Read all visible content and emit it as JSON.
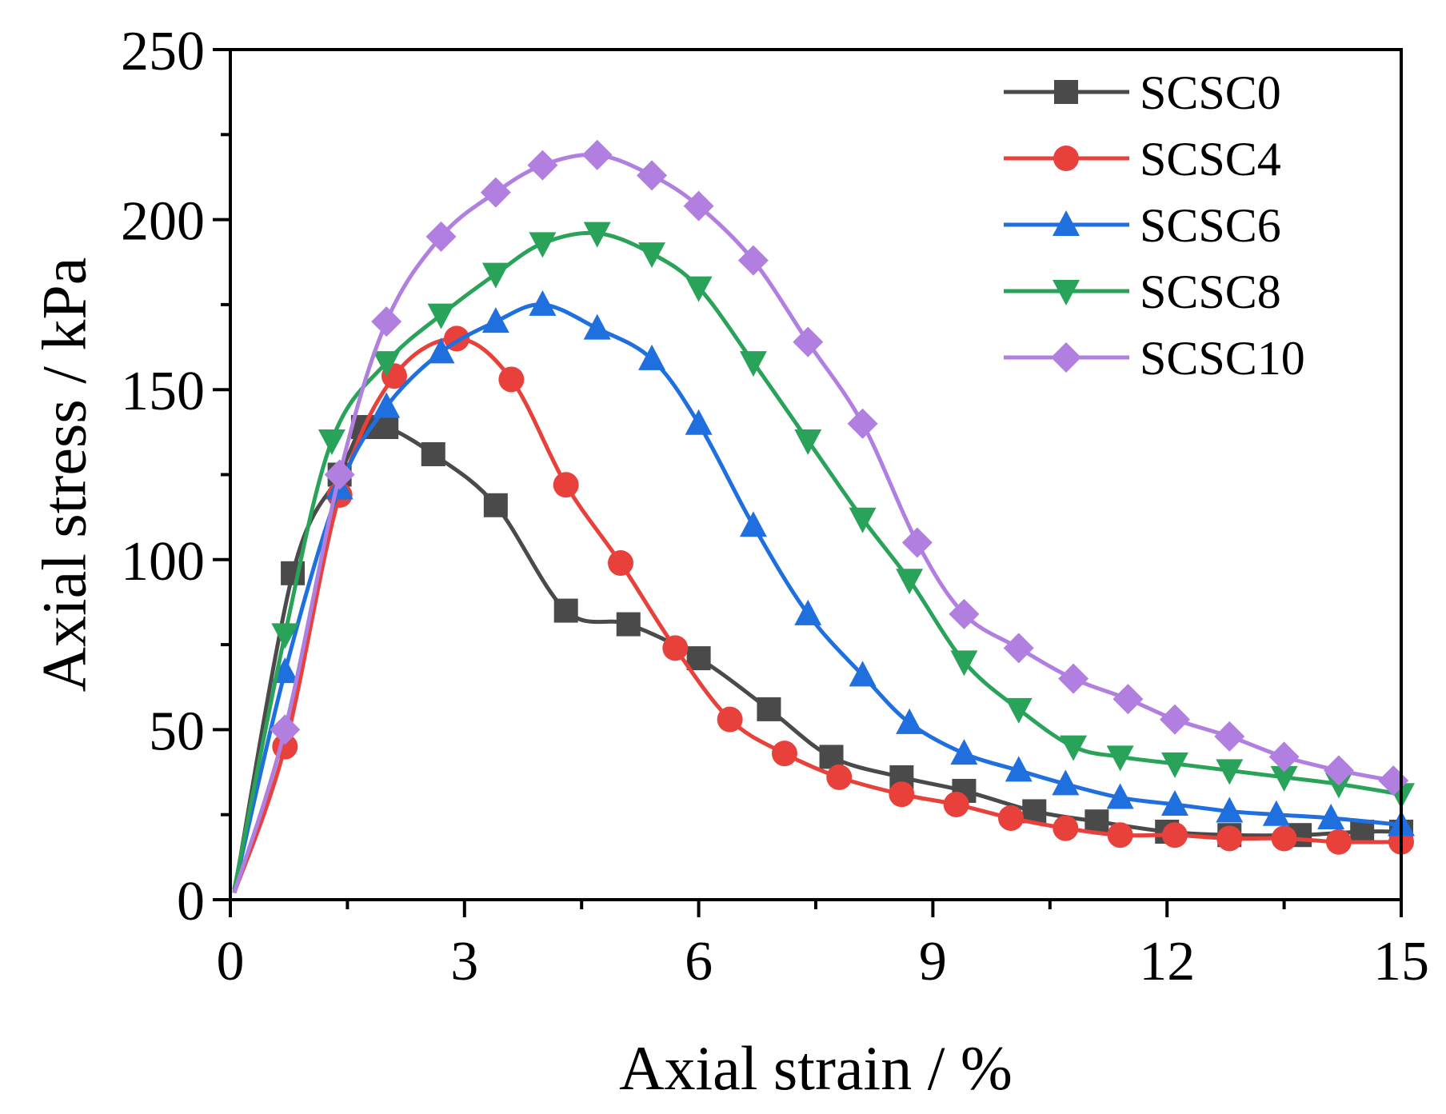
{
  "chart_data": {
    "type": "line",
    "title": "",
    "xlabel": "Axial strain / %",
    "ylabel": "Axial stress / kPa",
    "xlim": [
      0,
      15
    ],
    "ylim": [
      0,
      250
    ],
    "x_ticks": [
      0,
      3,
      6,
      9,
      12,
      15
    ],
    "y_ticks": [
      0,
      50,
      100,
      150,
      200,
      250
    ],
    "x_tick_labels": [
      "0",
      "3",
      "6",
      "9",
      "12",
      "15"
    ],
    "y_tick_labels": [
      "0",
      "50",
      "100",
      "150",
      "200",
      "250"
    ],
    "grid": false,
    "legend_position": "top-right",
    "series": [
      {
        "name": "SCSC0",
        "color": "#4a4a4a",
        "marker": "square",
        "x": [
          0.05,
          0.8,
          1.4,
          1.7,
          2.0,
          2.6,
          3.4,
          4.3,
          5.1,
          6.0,
          6.9,
          7.7,
          8.6,
          9.4,
          10.3,
          11.1,
          12.0,
          12.8,
          13.7,
          14.5,
          15.0
        ],
        "y": [
          2,
          96,
          125,
          139,
          139,
          131,
          116,
          85,
          81,
          71,
          56,
          42,
          36,
          32,
          26,
          23,
          20,
          19,
          19,
          20,
          20
        ]
      },
      {
        "name": "SCSC4",
        "color": "#e8413c",
        "marker": "circle",
        "x": [
          0.05,
          0.7,
          1.4,
          2.1,
          2.9,
          3.6,
          4.3,
          5.0,
          5.7,
          6.4,
          7.1,
          7.8,
          8.6,
          9.3,
          10.0,
          10.7,
          11.4,
          12.1,
          12.8,
          13.5,
          14.2,
          15.0
        ],
        "y": [
          2,
          45,
          119,
          154,
          165,
          153,
          122,
          99,
          74,
          53,
          43,
          36,
          31,
          28,
          24,
          21,
          19,
          19,
          18,
          18,
          17,
          17
        ]
      },
      {
        "name": "SCSC6",
        "color": "#1f6fde",
        "marker": "triangle-up",
        "x": [
          0.05,
          0.7,
          1.4,
          2.0,
          2.7,
          3.4,
          4.0,
          4.7,
          5.4,
          6.0,
          6.7,
          7.4,
          8.1,
          8.7,
          9.4,
          10.1,
          10.7,
          11.4,
          12.1,
          12.8,
          13.4,
          14.1,
          15.0
        ],
        "y": [
          3,
          67,
          121,
          145,
          161,
          170,
          175,
          168,
          159,
          140,
          110,
          84,
          66,
          52,
          43,
          38,
          34,
          30,
          28,
          26,
          25,
          24,
          22
        ]
      },
      {
        "name": "SCSC8",
        "color": "#2aa35a",
        "marker": "triangle-down",
        "x": [
          0.05,
          0.7,
          1.3,
          2.0,
          2.7,
          3.4,
          4.0,
          4.7,
          5.4,
          6.0,
          6.7,
          7.4,
          8.1,
          8.7,
          9.4,
          10.1,
          10.8,
          11.4,
          12.1,
          12.8,
          13.5,
          14.2,
          15.0
        ],
        "y": [
          3,
          78,
          135,
          158,
          172,
          184,
          193,
          196,
          190,
          180,
          158,
          135,
          112,
          94,
          70,
          56,
          45,
          42,
          40,
          38,
          36,
          34,
          31
        ]
      },
      {
        "name": "SCSC10",
        "color": "#b07fe0",
        "marker": "diamond",
        "x": [
          0.05,
          0.7,
          1.4,
          2.0,
          2.7,
          3.4,
          4.0,
          4.7,
          5.4,
          6.0,
          6.7,
          7.4,
          8.1,
          8.8,
          9.4,
          10.1,
          10.8,
          11.5,
          12.1,
          12.8,
          13.5,
          14.2,
          14.9
        ],
        "y": [
          2,
          50,
          125,
          170,
          195,
          208,
          216,
          219,
          213,
          204,
          188,
          164,
          140,
          105,
          84,
          74,
          65,
          59,
          53,
          48,
          42,
          38,
          35
        ]
      }
    ]
  }
}
